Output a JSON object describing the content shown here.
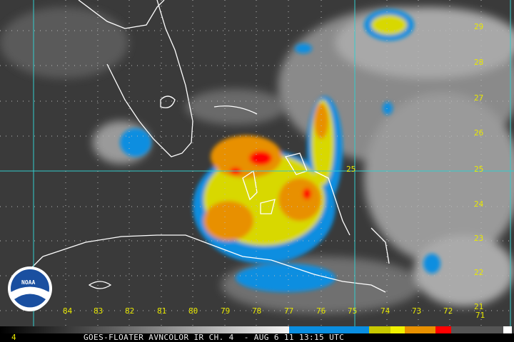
{
  "caption": {
    "frame_number": "4",
    "title": "GOES-FLOATER AVNCOLOR IR CH. 4  - AUG 6 11 13:15 UTC"
  },
  "longitude_labels": [
    "84",
    "83",
    "82",
    "81",
    "80",
    "79",
    "78",
    "77",
    "76",
    "75",
    "74",
    "73",
    "72",
    "71"
  ],
  "latitude_labels": [
    "29",
    "28",
    "27",
    "26",
    "25",
    "24",
    "23",
    "22",
    "21"
  ],
  "grid_inline_label": "25",
  "logo": {
    "text": "NOAA"
  },
  "colors": {
    "grid": "#33cccc",
    "label": "#e8e800",
    "coastline": "#ffffff",
    "scale_blue": "#0a8ee0",
    "scale_yellow": "#f0f000",
    "scale_orange": "#e89000",
    "scale_red": "#ff0000"
  }
}
